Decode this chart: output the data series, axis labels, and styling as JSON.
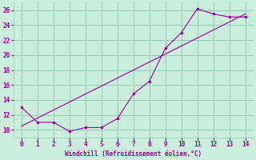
{
  "xlabel": "Windchill (Refroidissement éolien,°C)",
  "xlim": [
    -0.5,
    14.5
  ],
  "ylim": [
    9,
    27
  ],
  "xticks": [
    0,
    1,
    2,
    3,
    4,
    5,
    6,
    7,
    8,
    9,
    10,
    11,
    12,
    13,
    14
  ],
  "yticks": [
    10,
    12,
    14,
    16,
    18,
    20,
    22,
    24,
    26
  ],
  "background_color": "#cceedd",
  "grid_color": "#99ccbb",
  "line_color": "#990099",
  "line1_x": [
    0,
    1,
    2,
    3,
    4,
    5,
    6,
    7,
    8,
    9,
    10,
    11,
    12,
    13,
    14
  ],
  "line1_y": [
    13,
    11,
    11,
    9.8,
    10.3,
    10.3,
    11.5,
    14.8,
    16.5,
    20.9,
    23,
    26.2,
    25.5,
    25.1,
    25.1
  ],
  "line2_x": [
    0,
    14
  ],
  "line2_y": [
    10.5,
    25.5
  ]
}
